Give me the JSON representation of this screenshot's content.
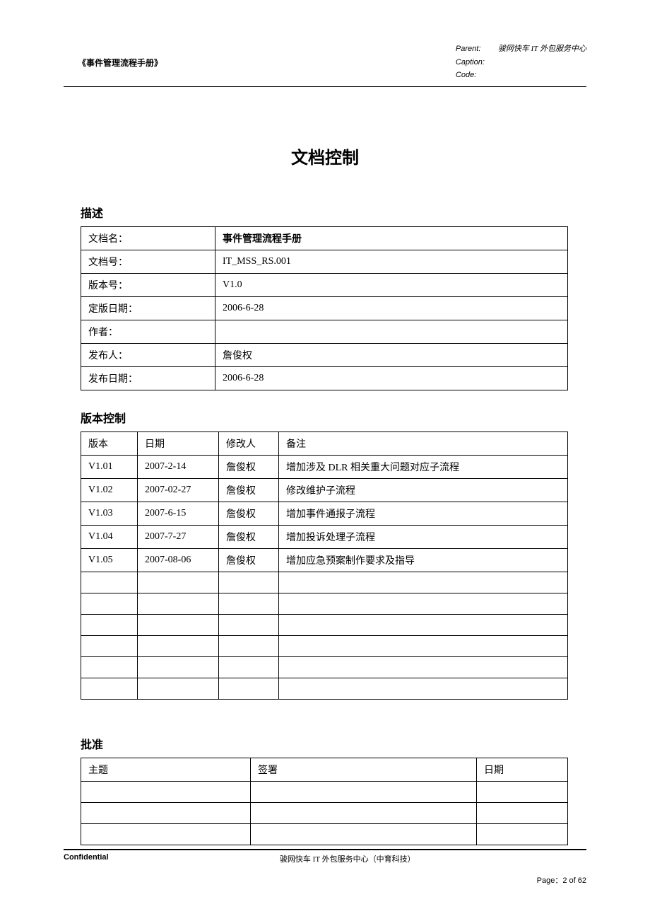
{
  "header": {
    "left_title": "《事件管理流程手册》",
    "parent_label": "Parent:",
    "parent_value": "骏网快车 IT 外包服务中心",
    "caption_label": "Caption:",
    "caption_value": "",
    "code_label": "Code:",
    "code_value": ""
  },
  "page_title": "文档控制",
  "description": {
    "heading": "描述",
    "rows": [
      {
        "label": "文档名：",
        "value": "事件管理流程手册"
      },
      {
        "label": "文档号：",
        "value": "IT_MSS_RS.001"
      },
      {
        "label": "版本号：",
        "value": "V1.0"
      },
      {
        "label": "定版日期：",
        "value": "2006-6-28"
      },
      {
        "label": "作者：",
        "value": ""
      },
      {
        "label": "发布人：",
        "value": "詹俊权"
      },
      {
        "label": "发布日期：",
        "value": "2006-6-28"
      }
    ]
  },
  "version_control": {
    "heading": "版本控制",
    "columns": [
      "版本",
      "日期",
      "修改人",
      "备注"
    ],
    "rows": [
      [
        "V1.01",
        "2007-2-14",
        "詹俊权",
        "增加涉及 DLR 相关重大问题对应子流程"
      ],
      [
        "V1.02",
        "2007-02-27",
        "詹俊权",
        "修改维护子流程"
      ],
      [
        "V1.03",
        "2007-6-15",
        "詹俊权",
        "增加事件通报子流程"
      ],
      [
        "V1.04",
        "2007-7-27",
        "詹俊权",
        "增加投诉处理子流程"
      ],
      [
        "V1.05",
        "2007-08-06",
        "詹俊权",
        "增加应急预案制作要求及指导"
      ],
      [
        "",
        "",
        "",
        ""
      ],
      [
        "",
        "",
        "",
        ""
      ],
      [
        "",
        "",
        "",
        ""
      ],
      [
        "",
        "",
        "",
        ""
      ],
      [
        "",
        "",
        "",
        ""
      ],
      [
        "",
        "",
        "",
        ""
      ]
    ]
  },
  "approval": {
    "heading": "批准",
    "columns": [
      "主题",
      "签署",
      "日期"
    ],
    "rows": [
      [
        "",
        "",
        ""
      ],
      [
        "",
        "",
        ""
      ],
      [
        "",
        "",
        ""
      ]
    ]
  },
  "footer": {
    "confidential": "Confidential",
    "center": "骏网快车 IT 外包服务中心（中育科技）",
    "page": "Page：2 of 62"
  }
}
